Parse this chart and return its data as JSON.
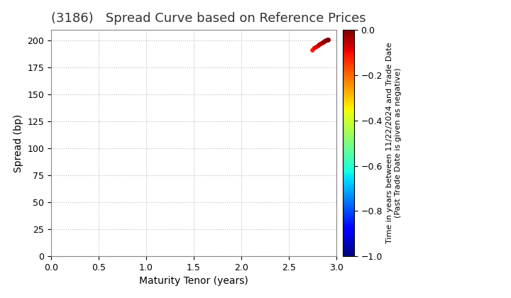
{
  "title": "(3186)   Spread Curve based on Reference Prices",
  "xlabel": "Maturity Tenor (years)",
  "ylabel": "Spread (bp)",
  "colorbar_label": "Time in years between 11/22/2024 and Trade Date\n(Past Trade Date is given as negative)",
  "xlim": [
    0.0,
    3.0
  ],
  "ylim": [
    0,
    210
  ],
  "xticks": [
    0.0,
    0.5,
    1.0,
    1.5,
    2.0,
    2.5,
    3.0
  ],
  "yticks": [
    0,
    25,
    50,
    75,
    100,
    125,
    150,
    175,
    200
  ],
  "clim": [
    -1.0,
    0.0
  ],
  "cticks": [
    0.0,
    -0.2,
    -0.4,
    -0.6,
    -0.8,
    -1.0
  ],
  "scatter_x": [
    2.75,
    2.77,
    2.79,
    2.81,
    2.82,
    2.83,
    2.84,
    2.85,
    2.86,
    2.87,
    2.875,
    2.88,
    2.885,
    2.89,
    2.895,
    2.9,
    2.905,
    2.91,
    2.915,
    2.92
  ],
  "scatter_y": [
    191,
    193,
    194,
    195,
    196,
    196.5,
    197,
    197.5,
    198,
    198.5,
    199,
    199.2,
    199.5,
    199.7,
    200.0,
    200.2,
    200.3,
    200.4,
    200.5,
    200.6
  ],
  "scatter_c": [
    -0.12,
    -0.1,
    -0.09,
    -0.08,
    -0.07,
    -0.06,
    -0.055,
    -0.05,
    -0.04,
    -0.035,
    -0.03,
    -0.025,
    -0.02,
    -0.015,
    -0.01,
    -0.008,
    -0.006,
    -0.004,
    -0.002,
    0.0
  ],
  "marker_size": 12,
  "background_color": "#ffffff",
  "grid_color": "#bbbbbb",
  "title_fontsize": 13,
  "axis_label_fontsize": 10,
  "tick_fontsize": 9,
  "colorbar_tick_fontsize": 9,
  "colorbar_label_fontsize": 8
}
